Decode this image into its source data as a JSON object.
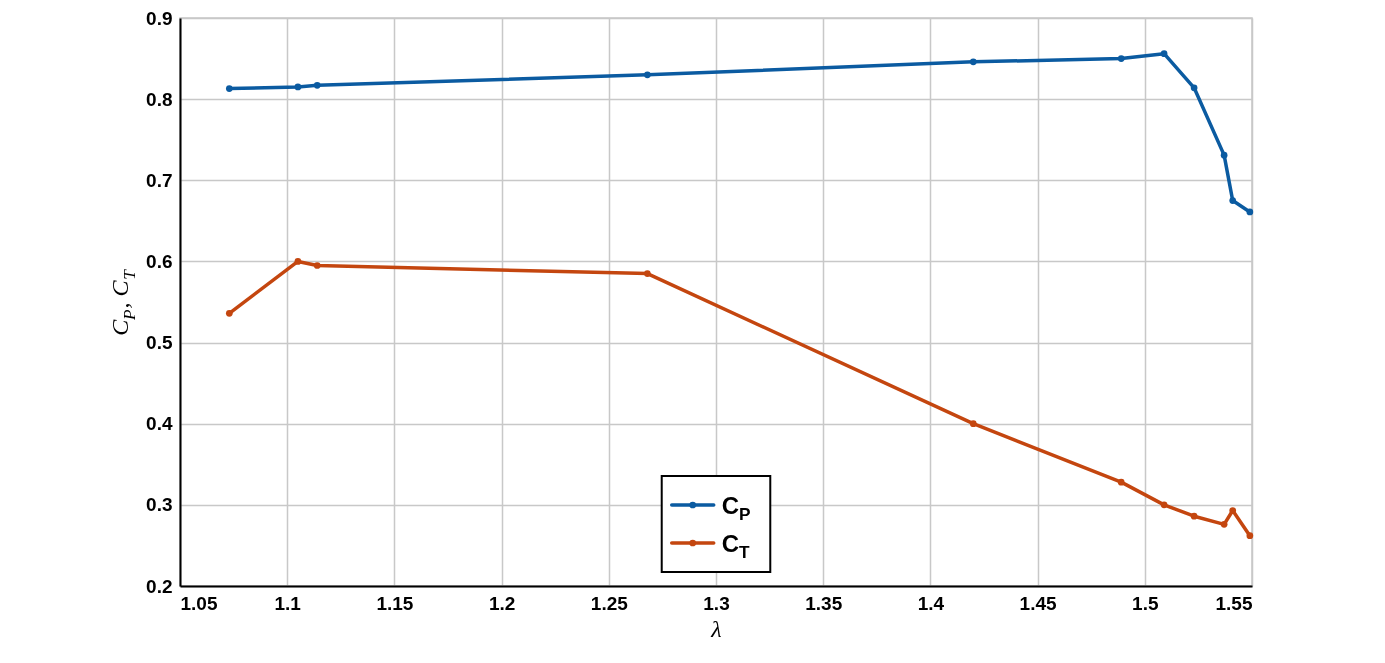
{
  "chart_data": {
    "type": "line",
    "xlabel": "λ",
    "ylabel": "C$_{P}$, C$_{T}$",
    "x": [
      1.073,
      1.105,
      1.114,
      1.268,
      1.42,
      1.489,
      1.509,
      1.523,
      1.537,
      1.541,
      1.549
    ],
    "series": [
      {
        "name": "C$_{P}$",
        "color": "#0b5ba1",
        "values": [
          0.813,
          0.815,
          0.817,
          0.83,
          0.846,
          0.85,
          0.856,
          0.814,
          0.731,
          0.675,
          0.661
        ]
      },
      {
        "name": "C$_{T}$",
        "color": "#c4460f",
        "values": [
          0.536,
          0.6,
          0.595,
          0.585,
          0.4,
          0.328,
          0.3,
          0.286,
          0.276,
          0.293,
          0.262
        ]
      }
    ],
    "xlim": [
      1.05,
      1.55
    ],
    "ylim": [
      0.2,
      0.9
    ],
    "xticks": [
      1.05,
      1.1,
      1.15,
      1.2,
      1.25,
      1.3,
      1.35,
      1.4,
      1.45,
      1.5,
      1.55
    ],
    "yticks": [
      0.2,
      0.3,
      0.4,
      0.5,
      0.6,
      0.7,
      0.8,
      0.9
    ],
    "grid": true,
    "legend": "bottom",
    "marker": "circle",
    "line_style": "solid"
  }
}
